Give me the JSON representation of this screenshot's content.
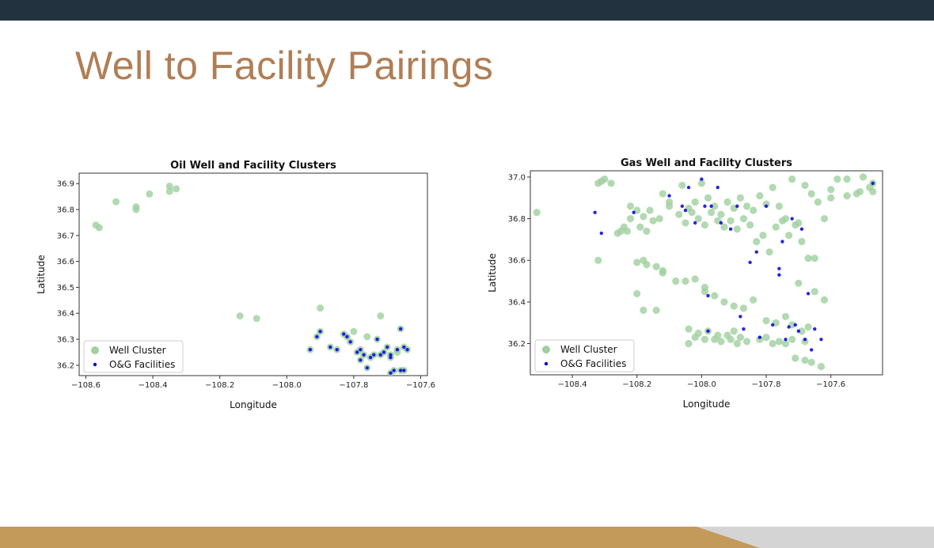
{
  "slide": {
    "title": "Well to Facility Pairings",
    "colors": {
      "top_bar": "#22323e",
      "title": "#b07e55",
      "footer_gold": "#c49a5a",
      "footer_grey": "#d4d4d4"
    }
  },
  "chart_data": [
    {
      "type": "scatter",
      "title": "Oil Well and Facility Clusters",
      "xlabel": "Longitude",
      "ylabel": "Latitude",
      "xlim": [
        -108.62,
        -107.58
      ],
      "ylim": [
        36.16,
        36.94
      ],
      "xticks": [
        -108.6,
        -108.4,
        -108.2,
        -108.0,
        -107.8,
        -107.6
      ],
      "xtick_labels": [
        "−108.6",
        "−108.4",
        "−108.2",
        "−108.0",
        "−107.8",
        "−107.6"
      ],
      "yticks": [
        36.2,
        36.3,
        36.4,
        36.5,
        36.6,
        36.7,
        36.8,
        36.9
      ],
      "ytick_labels": [
        "36.2",
        "36.3",
        "36.4",
        "36.5",
        "36.6",
        "36.7",
        "36.8",
        "36.9"
      ],
      "grid": false,
      "legend_position": "lower-left",
      "series": [
        {
          "name": "Well Cluster",
          "color": "#9fd09f",
          "x": [
            -108.57,
            -108.56,
            -108.51,
            -108.45,
            -108.45,
            -108.41,
            -108.35,
            -108.35,
            -108.33,
            -108.14,
            -108.09,
            -107.9,
            -107.93,
            -107.91,
            -107.9,
            -107.87,
            -107.85,
            -107.83,
            -107.82,
            -107.81,
            -107.79,
            -107.78,
            -107.78,
            -107.77,
            -107.76,
            -107.75,
            -107.74,
            -107.73,
            -107.72,
            -107.71,
            -107.7,
            -107.69,
            -107.69,
            -107.68,
            -107.67,
            -107.66,
            -107.65,
            -107.64,
            -107.72,
            -107.66,
            -107.65,
            -107.67,
            -107.69,
            -107.8,
            -107.76
          ],
          "y": [
            36.74,
            36.73,
            36.83,
            36.81,
            36.8,
            36.86,
            36.89,
            36.87,
            36.88,
            36.39,
            36.38,
            36.42,
            36.26,
            36.31,
            36.33,
            36.27,
            36.26,
            36.32,
            36.31,
            36.29,
            36.25,
            36.26,
            36.22,
            36.24,
            36.19,
            36.23,
            36.24,
            36.3,
            36.24,
            36.25,
            36.27,
            36.23,
            36.24,
            36.18,
            36.26,
            36.34,
            36.27,
            36.26,
            36.39,
            36.18,
            36.18,
            36.25,
            36.17,
            36.33,
            36.31
          ]
        },
        {
          "name": "O&G Facilities",
          "color": "#0000dd",
          "x": [
            -107.93,
            -107.91,
            -107.9,
            -107.87,
            -107.85,
            -107.83,
            -107.82,
            -107.81,
            -107.79,
            -107.78,
            -107.78,
            -107.77,
            -107.76,
            -107.75,
            -107.74,
            -107.73,
            -107.72,
            -107.71,
            -107.7,
            -107.69,
            -107.69,
            -107.68,
            -107.67,
            -107.66,
            -107.65,
            -107.64,
            -107.66,
            -107.65,
            -107.69
          ],
          "y": [
            36.26,
            36.31,
            36.33,
            36.27,
            36.26,
            36.32,
            36.31,
            36.29,
            36.25,
            36.26,
            36.22,
            36.24,
            36.19,
            36.23,
            36.24,
            36.3,
            36.24,
            36.25,
            36.27,
            36.23,
            36.24,
            36.18,
            36.26,
            36.34,
            36.27,
            36.26,
            36.18,
            36.18,
            36.17
          ]
        }
      ]
    },
    {
      "type": "scatter",
      "title": "Gas Well and Facility Clusters",
      "xlabel": "Longitude",
      "ylabel": "Latitude",
      "xlim": [
        -108.53,
        -107.44
      ],
      "ylim": [
        36.05,
        37.03
      ],
      "xticks": [
        -108.4,
        -108.2,
        -108.0,
        -107.8,
        -107.6
      ],
      "xtick_labels": [
        "−108.4",
        "−108.2",
        "−108.0",
        "−107.8",
        "−107.6"
      ],
      "yticks": [
        36.2,
        36.4,
        36.6,
        36.8,
        37.0
      ],
      "ytick_labels": [
        "36.2",
        "36.4",
        "36.6",
        "36.8",
        "37.0"
      ],
      "grid": false,
      "legend_position": "lower-left",
      "series": [
        {
          "name": "Well Cluster",
          "color": "#9fd09f",
          "x": [
            -108.51,
            -108.32,
            -108.31,
            -108.3,
            -108.28,
            -108.25,
            -108.22,
            -108.2,
            -108.18,
            -108.15,
            -108.12,
            -108.1,
            -108.06,
            -108.04,
            -108.02,
            -108.0,
            -107.98,
            -107.96,
            -107.94,
            -107.92,
            -107.9,
            -107.88,
            -107.86,
            -107.84,
            -107.82,
            -107.8,
            -107.78,
            -107.76,
            -107.74,
            -107.72,
            -107.7,
            -107.68,
            -107.66,
            -107.64,
            -107.62,
            -107.6,
            -107.58,
            -107.55,
            -107.52,
            -107.5,
            -107.48,
            -107.47,
            -108.24,
            -108.22,
            -108.19,
            -108.16,
            -108.13,
            -108.1,
            -108.07,
            -108.05,
            -108.03,
            -108.01,
            -107.99,
            -107.97,
            -107.95,
            -107.93,
            -107.91,
            -107.89,
            -107.87,
            -107.85,
            -107.83,
            -107.81,
            -107.79,
            -107.77,
            -107.75,
            -107.73,
            -107.71,
            -107.69,
            -107.67,
            -107.65,
            -108.2,
            -108.18,
            -108.17,
            -108.14,
            -108.12,
            -108.05,
            -108.02,
            -107.99,
            -107.96,
            -107.93,
            -107.9,
            -107.87,
            -107.84,
            -107.8,
            -107.77,
            -107.74,
            -107.72,
            -107.69,
            -107.67,
            -108.2,
            -108.18,
            -108.14,
            -108.04,
            -108.01,
            -107.98,
            -107.95,
            -107.92,
            -107.9,
            -107.88,
            -107.8,
            -107.76,
            -107.72,
            -107.68,
            -108.04,
            -108.02,
            -107.99,
            -107.96,
            -107.94,
            -107.91,
            -107.89,
            -107.86,
            -107.82,
            -107.78,
            -107.74,
            -107.71,
            -107.68,
            -107.66,
            -107.63,
            -108.32,
            -108.26,
            -108.23,
            -108.17,
            -108.12,
            -108.08,
            -107.6,
            -107.55,
            -107.51,
            -107.47,
            -107.7,
            -107.65,
            -107.62,
            -107.99
          ],
          "y": [
            36.83,
            36.97,
            36.98,
            36.99,
            36.97,
            36.74,
            36.86,
            36.84,
            36.81,
            36.79,
            36.92,
            36.88,
            36.96,
            36.85,
            36.88,
            36.97,
            36.9,
            36.86,
            36.82,
            36.88,
            36.85,
            36.9,
            36.86,
            36.84,
            36.91,
            36.87,
            36.95,
            36.86,
            36.8,
            36.99,
            36.78,
            36.96,
            36.92,
            36.88,
            36.8,
            36.94,
            36.99,
            36.99,
            36.92,
            37.0,
            36.95,
            36.93,
            36.76,
            36.8,
            36.76,
            36.84,
            36.8,
            36.86,
            36.82,
            36.78,
            36.83,
            36.8,
            36.77,
            36.83,
            36.79,
            36.76,
            36.79,
            36.75,
            36.8,
            36.77,
            36.69,
            36.72,
            36.64,
            36.76,
            36.79,
            36.72,
            36.77,
            36.69,
            36.61,
            36.61,
            36.59,
            36.6,
            36.58,
            36.57,
            36.55,
            36.5,
            36.51,
            36.45,
            36.43,
            36.4,
            36.38,
            36.37,
            36.41,
            36.31,
            36.3,
            36.33,
            36.29,
            36.26,
            36.28,
            36.44,
            36.36,
            36.36,
            36.27,
            36.25,
            36.26,
            36.24,
            36.24,
            36.26,
            36.23,
            36.23,
            36.21,
            36.22,
            36.21,
            36.2,
            36.23,
            36.22,
            36.22,
            36.21,
            36.22,
            36.2,
            36.21,
            36.22,
            36.2,
            36.2,
            36.13,
            36.12,
            36.11,
            36.09,
            36.6,
            36.73,
            36.74,
            36.74,
            36.54,
            36.5,
            36.9,
            36.91,
            36.93,
            36.97,
            36.49,
            36.45,
            36.41,
            36.47
          ],
          "size": 4.5
        },
        {
          "name": "O&G Facilities",
          "color": "#0000dd",
          "x": [
            -108.33,
            -108.31,
            -108.21,
            -108.1,
            -108.06,
            -108.04,
            -108.02,
            -108.0,
            -107.99,
            -107.98,
            -107.97,
            -107.95,
            -107.94,
            -107.91,
            -107.88,
            -107.87,
            -107.85,
            -107.83,
            -107.82,
            -107.8,
            -107.78,
            -107.76,
            -107.75,
            -107.74,
            -107.73,
            -107.72,
            -107.71,
            -107.7,
            -107.69,
            -107.68,
            -107.67,
            -107.66,
            -107.65,
            -107.63,
            -107.47,
            -108.05,
            -107.98,
            -107.76,
            -107.89
          ],
          "y": [
            36.83,
            36.73,
            36.83,
            36.91,
            36.86,
            36.95,
            36.78,
            36.99,
            36.86,
            36.43,
            36.86,
            36.95,
            36.78,
            36.75,
            36.33,
            36.27,
            36.59,
            36.64,
            36.23,
            36.86,
            36.29,
            36.53,
            36.69,
            36.22,
            36.28,
            36.8,
            36.29,
            36.26,
            36.75,
            36.22,
            36.44,
            36.17,
            36.27,
            36.22,
            36.97,
            36.84,
            36.26,
            36.56,
            36.86
          ]
        }
      ]
    }
  ]
}
